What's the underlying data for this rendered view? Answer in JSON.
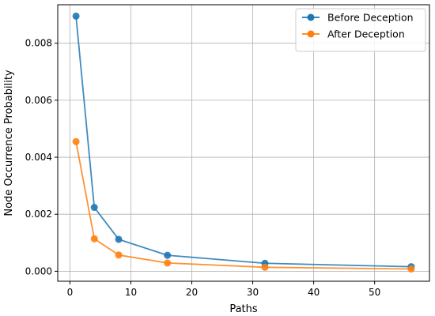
{
  "chart_data": {
    "type": "line",
    "xlabel": "Paths",
    "ylabel": "Node Occurrence Probability",
    "xlim": [
      -2,
      59
    ],
    "ylim": [
      -0.00035,
      0.00935
    ],
    "xticks": [
      0,
      10,
      20,
      30,
      40,
      50
    ],
    "xtick_labels": [
      "0",
      "10",
      "20",
      "30",
      "40",
      "50"
    ],
    "yticks": [
      0.0,
      0.002,
      0.004,
      0.006,
      0.008
    ],
    "ytick_labels": [
      "0.000",
      "0.002",
      "0.004",
      "0.006",
      "0.008"
    ],
    "grid": true,
    "legend_position": "top-right",
    "series": [
      {
        "name": "Before Deception",
        "color": "#1f77b4",
        "x": [
          1,
          4,
          8,
          16,
          32,
          56
        ],
        "y": [
          0.00895,
          0.00224,
          0.00112,
          0.00056,
          0.00028,
          0.00016
        ]
      },
      {
        "name": "After Deception",
        "color": "#ff7f0e",
        "x": [
          1,
          4,
          8,
          16,
          32,
          56
        ],
        "y": [
          0.00455,
          0.00114,
          0.00057,
          0.00029,
          0.00014,
          8e-05
        ]
      }
    ]
  }
}
